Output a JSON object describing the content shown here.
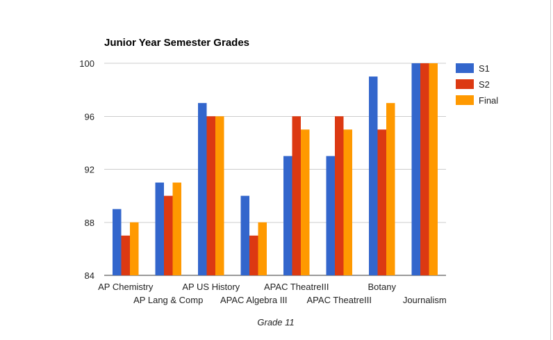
{
  "chart_data": {
    "type": "bar",
    "title": "Junior Year Semester Grades",
    "xlabel": "Grade 11",
    "ylabel": "",
    "ylim": [
      84,
      100
    ],
    "yticks": [
      84,
      88,
      92,
      96,
      100
    ],
    "grid": true,
    "legend_position": "right",
    "categories": [
      "AP Chemistry",
      "AP Lang & Comp",
      "AP US History",
      "APAC Algebra III",
      "APAC TheatreIII",
      "APAC TheatreIII",
      "Botany",
      "Journalism"
    ],
    "series": [
      {
        "name": "S1",
        "color": "#3366cc",
        "values": [
          89,
          91,
          97,
          90,
          93,
          93,
          99,
          100
        ]
      },
      {
        "name": "S2",
        "color": "#dc3912",
        "values": [
          87,
          90,
          96,
          87,
          96,
          96,
          95,
          100
        ]
      },
      {
        "name": "Final",
        "color": "#ff9900",
        "values": [
          88,
          91,
          96,
          88,
          95,
          95,
          97,
          100
        ]
      }
    ]
  }
}
